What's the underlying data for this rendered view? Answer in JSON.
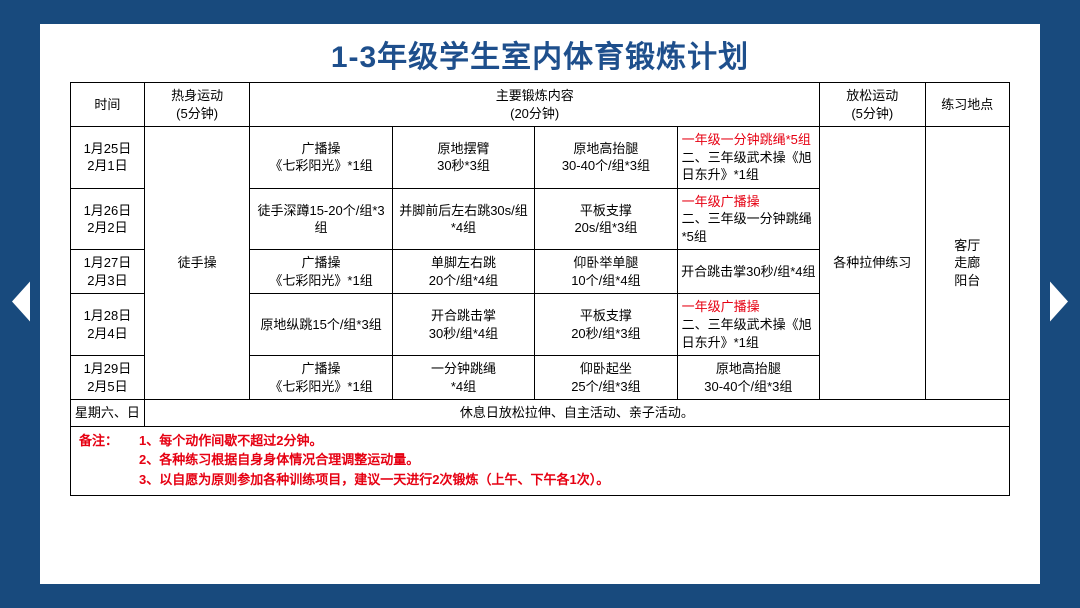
{
  "title_lead": "1-3",
  "title_rest": "年级学生室内体育锻炼计划",
  "colors": {
    "frame": "#184a7d",
    "title": "#1e4f8c",
    "accent": "#e60012",
    "border": "#000000",
    "bg": "#ffffff"
  },
  "headers": {
    "time": "时间",
    "warmup": "热身运动\n(5分钟)",
    "main": "主要锻炼内容\n(20分钟)",
    "cooldown": "放松运动\n(5分钟)",
    "location": "练习地点"
  },
  "warmup_label": "徒手操",
  "cooldown_label": "各种拉伸练习",
  "location_label": "客厅\n走廊\n阳台",
  "rows": [
    {
      "date": "1月25日\n2月1日",
      "c1": "广播操\n《七彩阳光》*1组",
      "c2": "原地摆臂\n30秒*3组",
      "c3": "原地高抬腿\n30-40个/组*3组",
      "c4_red": "一年级一分钟跳绳*5组",
      "c4_rest": "二、三年级武术操《旭日东升》*1组"
    },
    {
      "date": "1月26日\n2月2日",
      "c1": "徒手深蹲15-20个/组*3组",
      "c2": "并脚前后左右跳30s/组*4组",
      "c3": "平板支撑\n20s/组*3组",
      "c4_red": "一年级广播操",
      "c4_rest": "二、三年级一分钟跳绳*5组"
    },
    {
      "date": "1月27日\n2月3日",
      "c1": "广播操\n《七彩阳光》*1组",
      "c2": "单脚左右跳\n20个/组*4组",
      "c3": "仰卧举单腿\n10个/组*4组",
      "c4_plain": "开合跳击掌30秒/组*4组"
    },
    {
      "date": "1月28日\n2月4日",
      "c1": "原地纵跳15个/组*3组",
      "c2": "开合跳击掌\n30秒/组*4组",
      "c3": "平板支撑\n20秒/组*3组",
      "c4_red": "一年级广播操",
      "c4_rest": "二、三年级武术操《旭日东升》*1组"
    },
    {
      "date": "1月29日\n2月5日",
      "c1": "广播操\n《七彩阳光》*1组",
      "c2": "一分钟跳绳\n*4组",
      "c3": "仰卧起坐\n25个/组*3组",
      "c4_plain": "原地高抬腿\n30-40个/组*3组"
    }
  ],
  "weekend": {
    "label": "星期六、日",
    "text": "休息日放松拉伸、自主活动、亲子活动。"
  },
  "notes": {
    "label": "备注：",
    "n1": "1、每个动作间歇不超过2分钟。",
    "n2": "2、各种练习根据自身身体情况合理调整运动量。",
    "n3": "3、以自愿为原则参加各种训练项目，建议一天进行2次锻炼（上午、下午各1次）。"
  }
}
